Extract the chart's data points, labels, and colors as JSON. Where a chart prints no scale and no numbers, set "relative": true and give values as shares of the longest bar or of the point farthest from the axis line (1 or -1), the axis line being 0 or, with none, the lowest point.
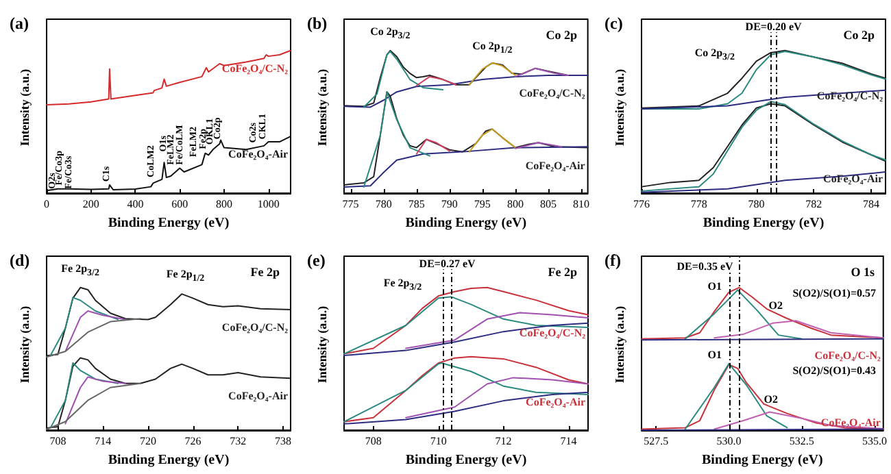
{
  "chart_data": [
    {
      "type": "line",
      "title": "(a)",
      "xlabel": "Binding Energy (eV)",
      "ylabel": "Intensity (a.u.)",
      "relative": true,
      "xlim": [
        0,
        1100
      ],
      "xticks": [
        0,
        200,
        400,
        600,
        800,
        1000
      ],
      "series": [
        {
          "name": "CoFe₂O₄/C-N₂",
          "color": "#d42a2a",
          "x": [
            0,
            100,
            200,
            280,
            284,
            290,
            400,
            480,
            485,
            520,
            530,
            540,
            600,
            700,
            720,
            730,
            780,
            800,
            900,
            950,
            980,
            990,
            1000,
            1050,
            1100
          ],
          "values": [
            0.62,
            0.626,
            0.64,
            0.66,
            0.87,
            0.66,
            0.686,
            0.704,
            0.72,
            0.738,
            0.8,
            0.75,
            0.777,
            0.817,
            0.88,
            0.85,
            0.908,
            0.895,
            0.92,
            0.935,
            0.945,
            0.97,
            0.96,
            0.97,
            1.0
          ]
        },
        {
          "name": "CoFe₂O₄-Air",
          "color": "#111111",
          "x": [
            0,
            50,
            100,
            200,
            280,
            284,
            300,
            400,
            470,
            480,
            520,
            530,
            540,
            560,
            600,
            620,
            700,
            715,
            730,
            750,
            780,
            785,
            800,
            900,
            980,
            1000,
            1050,
            1100
          ],
          "values": [
            0.018,
            0.03,
            0.03,
            0.026,
            0.03,
            0.058,
            0.024,
            0.029,
            0.045,
            0.07,
            0.097,
            0.215,
            0.11,
            0.12,
            0.175,
            0.149,
            0.2,
            0.28,
            0.267,
            0.306,
            0.346,
            0.372,
            0.319,
            0.306,
            0.332,
            0.36,
            0.36,
            0.398
          ]
        }
      ],
      "annotations": [
        "O2s",
        "Fe/Co3p",
        "Fe/Co3s",
        "C1s",
        "CoLM2",
        "O1s",
        "FeLM2",
        "Fe/CoLM",
        "FeLM2",
        "Fe2p",
        "OKL1",
        "Co2p",
        "Co2s",
        "CKL1"
      ]
    },
    {
      "type": "line",
      "title": "(b)",
      "subtitle": "Co 2p",
      "xlabel": "Binding Energy (eV)",
      "ylabel": "Intensity (a.u.)",
      "relative": true,
      "xlim": [
        774,
        811
      ],
      "xticks": [
        775,
        780,
        785,
        790,
        795,
        800,
        805,
        810
      ],
      "series": [
        {
          "name": "CoFe₂O₄/C-N₂",
          "color": "#222222",
          "x": [
            774,
            777,
            778.5,
            779.5,
            780.5,
            781,
            782,
            783,
            784,
            785,
            786,
            787,
            789,
            791,
            793,
            794,
            795.5,
            796.5,
            798,
            799.5,
            801,
            803,
            805,
            808,
            811
          ],
          "values": [
            0.614,
            0.609,
            0.632,
            0.81,
            0.97,
            1.0,
            0.957,
            0.884,
            0.84,
            0.81,
            0.817,
            0.826,
            0.797,
            0.76,
            0.76,
            0.81,
            0.884,
            0.913,
            0.9,
            0.84,
            0.835,
            0.875,
            0.855,
            0.826,
            0.826
          ]
        },
        {
          "color": "#2c2c80",
          "x": [
            774,
            778,
            780,
            782,
            785,
            790,
            795,
            800,
            805,
            811
          ],
          "values": [
            0.609,
            0.603,
            0.652,
            0.71,
            0.748,
            0.76,
            0.797,
            0.817,
            0.826,
            0.826
          ]
        },
        {
          "color": "#2a8a80",
          "x": [
            777,
            779,
            780.5,
            781,
            782,
            784,
            786,
            789
          ],
          "values": [
            0.603,
            0.696,
            0.97,
            0.994,
            0.94,
            0.797,
            0.74,
            0.725
          ]
        },
        {
          "color": "#d04060",
          "x": [
            785,
            787,
            789,
            791
          ],
          "values": [
            0.754,
            0.817,
            0.797,
            0.76
          ]
        },
        {
          "color": "#c8a020",
          "x": [
            793,
            795,
            796.5,
            798,
            800
          ],
          "values": [
            0.76,
            0.87,
            0.913,
            0.893,
            0.826
          ]
        },
        {
          "color": "#a050b0",
          "x": [
            800,
            803,
            806,
            808
          ],
          "values": [
            0.817,
            0.875,
            0.841,
            0.826
          ]
        },
        {
          "name": "CoFe₂O₄-Air",
          "color": "#222222",
          "x": [
            774,
            777,
            778.5,
            779.5,
            780.5,
            781,
            782,
            783,
            784,
            785,
            786.5,
            788,
            790,
            792,
            794,
            795.5,
            796.5,
            798,
            800,
            802,
            803.5,
            806,
            811
          ],
          "values": [
            0.058,
            0.072,
            0.116,
            0.406,
            0.71,
            0.681,
            0.522,
            0.406,
            0.333,
            0.319,
            0.377,
            0.348,
            0.304,
            0.29,
            0.348,
            0.435,
            0.449,
            0.391,
            0.319,
            0.342,
            0.354,
            0.325,
            0.319
          ]
        },
        {
          "color": "#2c2c80",
          "x": [
            774,
            778,
            780,
            782,
            786,
            792,
            800,
            811
          ],
          "values": [
            0.043,
            0.052,
            0.145,
            0.232,
            0.275,
            0.29,
            0.319,
            0.325
          ]
        },
        {
          "color": "#2a8a80",
          "x": [
            777,
            779.5,
            780.5,
            782,
            784,
            787
          ],
          "values": [
            0.043,
            0.406,
            0.71,
            0.516,
            0.319,
            0.261
          ]
        },
        {
          "color": "#d04060",
          "x": [
            785,
            786.5,
            788,
            790
          ],
          "values": [
            0.275,
            0.377,
            0.354,
            0.296
          ]
        },
        {
          "color": "#c8a020",
          "x": [
            793,
            795,
            796.5,
            798,
            800
          ],
          "values": [
            0.29,
            0.406,
            0.449,
            0.391,
            0.319
          ]
        },
        {
          "color": "#a050b0",
          "x": [
            800,
            803.5,
            807
          ],
          "values": [
            0.313,
            0.354,
            0.325
          ]
        }
      ],
      "annotations": [
        "Co 2p$_{3/2}$",
        "Co 2p$_{1/2}$"
      ]
    },
    {
      "type": "line",
      "title": "(c)",
      "subtitle": "Co 2p",
      "xlabel": "Binding Energy (eV)",
      "ylabel": "Intensity (a.u.)",
      "relative": true,
      "xlim": [
        776,
        784.5
      ],
      "xticks": [
        776,
        778,
        780,
        782,
        784
      ],
      "series": [
        {
          "name": "CoFe₂O₄/C-N₂",
          "color": "#222222",
          "x": [
            776,
            778,
            779,
            779.5,
            780,
            780.5,
            781,
            782,
            783,
            784,
            784.5
          ],
          "values": [
            0.597,
            0.612,
            0.701,
            0.806,
            0.925,
            0.985,
            1.0,
            0.955,
            0.91,
            0.836,
            0.806
          ]
        },
        {
          "color": "#2a8a80",
          "x": [
            776,
            778,
            779,
            779.5,
            780,
            780.5,
            781,
            782,
            783,
            784,
            784.5
          ],
          "values": [
            0.591,
            0.591,
            0.627,
            0.701,
            0.866,
            0.97,
            0.994,
            0.955,
            0.9,
            0.83,
            0.8
          ]
        },
        {
          "color": "#2c2c80",
          "x": [
            776,
            779,
            781,
            783,
            784.5
          ],
          "values": [
            0.591,
            0.612,
            0.672,
            0.701,
            0.722
          ]
        },
        {
          "name": "CoFe₂O₄-Air",
          "color": "#222222",
          "x": [
            776,
            777,
            778,
            778.5,
            779,
            779.5,
            780,
            780.5,
            781,
            782,
            783,
            784,
            784.5
          ],
          "values": [
            0.045,
            0.075,
            0.09,
            0.179,
            0.328,
            0.478,
            0.597,
            0.627,
            0.612,
            0.478,
            0.358,
            0.269,
            0.224
          ]
        },
        {
          "color": "#2a8a80",
          "x": [
            776,
            778,
            778.5,
            779,
            779.5,
            780,
            780.5,
            781,
            782,
            783,
            784,
            784.5
          ],
          "values": [
            0.015,
            0.045,
            0.134,
            0.299,
            0.463,
            0.582,
            0.642,
            0.621,
            0.484,
            0.364,
            0.269,
            0.233
          ]
        },
        {
          "color": "#2c2c80",
          "x": [
            776,
            779,
            781,
            783,
            784.5
          ],
          "values": [
            0.006,
            0.03,
            0.09,
            0.119,
            0.149
          ]
        }
      ],
      "ref_lines": [
        {
          "axis": "x",
          "value": 780.5,
          "line_style": "dashed"
        },
        {
          "axis": "x",
          "value": 780.7,
          "line_style": "dashed"
        }
      ],
      "annotations": [
        "DE=0.20 eV",
        "Co 2p$_{3/2}$"
      ]
    },
    {
      "type": "line",
      "title": "(d)",
      "subtitle": "Fe 2p",
      "xlabel": "Binding Energy (eV)",
      "ylabel": "Intensity (a.u.)",
      "relative": true,
      "xlim": [
        706.5,
        739
      ],
      "xticks": [
        708,
        714,
        720,
        726,
        732,
        738
      ],
      "series": [
        {
          "name": "CoFe₂O₄/C-N₂",
          "color": "#222222",
          "x": [
            706.5,
            708,
            709,
            710,
            711,
            712,
            713,
            715,
            717,
            720,
            721,
            723,
            724.5,
            726,
            728,
            730,
            732,
            735,
            739
          ],
          "values": [
            0.522,
            0.531,
            0.716,
            0.925,
            1.0,
            0.985,
            0.91,
            0.82,
            0.782,
            0.776,
            0.791,
            0.88,
            0.955,
            0.925,
            0.88,
            0.866,
            0.872,
            0.851,
            0.845
          ]
        },
        {
          "color": "#2a8a80",
          "x": [
            707,
            709,
            710,
            711,
            713,
            716
          ],
          "values": [
            0.522,
            0.716,
            0.93,
            0.91,
            0.836,
            0.776
          ]
        },
        {
          "color": "#a050b0",
          "x": [
            709,
            711,
            712,
            714,
            717
          ],
          "values": [
            0.552,
            0.791,
            0.836,
            0.806,
            0.776
          ]
        },
        {
          "color": "#666666",
          "x": [
            706.5,
            709,
            712,
            715,
            719
          ],
          "values": [
            0.513,
            0.552,
            0.687,
            0.761,
            0.782
          ]
        },
        {
          "name": "CoFe₂O₄-Air",
          "color": "#222222",
          "x": [
            706.5,
            708,
            709,
            710,
            711,
            712,
            713,
            715,
            717,
            719,
            721,
            723,
            724.5,
            726,
            728,
            730,
            732,
            735,
            739
          ],
          "values": [
            0.015,
            0.024,
            0.209,
            0.448,
            0.507,
            0.493,
            0.433,
            0.358,
            0.328,
            0.328,
            0.358,
            0.433,
            0.463,
            0.433,
            0.388,
            0.388,
            0.403,
            0.373,
            0.364
          ]
        },
        {
          "color": "#2a8a80",
          "x": [
            707,
            709,
            710,
            711,
            713,
            716
          ],
          "values": [
            0.015,
            0.209,
            0.472,
            0.418,
            0.358,
            0.328
          ]
        },
        {
          "color": "#a050b0",
          "x": [
            709,
            711,
            712,
            714,
            717
          ],
          "values": [
            0.045,
            0.299,
            0.373,
            0.343,
            0.328
          ]
        },
        {
          "color": "#666666",
          "x": [
            706.5,
            709,
            712,
            715,
            719
          ],
          "values": [
            0.006,
            0.06,
            0.209,
            0.299,
            0.328
          ]
        }
      ],
      "annotations": [
        "Fe 2p$_{3/2}$",
        "Fe 2p$_{1/2}$"
      ]
    },
    {
      "type": "line",
      "title": "(e)",
      "subtitle": "Fe 2p",
      "xlabel": "Binding Energy (eV)",
      "ylabel": "Intensity (a.u.)",
      "relative": true,
      "xlim": [
        707.1,
        714.6
      ],
      "xticks": [
        708,
        710,
        712,
        714
      ],
      "series": [
        {
          "name": "CoFe₂O₄/C-N₂",
          "color": "#c8303a",
          "x": [
            707.1,
            708,
            709,
            709.5,
            710,
            710.5,
            711,
            711.5,
            712,
            713,
            714,
            714.6
          ],
          "values": [
            0.535,
            0.574,
            0.735,
            0.853,
            0.941,
            0.971,
            0.994,
            1.0,
            0.971,
            0.912,
            0.838,
            0.809
          ]
        },
        {
          "color": "#2a8a80",
          "x": [
            707.1,
            709,
            710,
            710.4,
            711,
            712,
            713,
            714.6
          ],
          "values": [
            0.535,
            0.735,
            0.926,
            0.935,
            0.882,
            0.779,
            0.735,
            0.721
          ]
        },
        {
          "color": "#a050b0",
          "x": [
            709,
            710.5,
            711.5,
            712.5,
            713.5,
            714.6
          ],
          "values": [
            0.574,
            0.632,
            0.779,
            0.824,
            0.809,
            0.788
          ]
        },
        {
          "color": "#2c2c80",
          "x": [
            707.1,
            709,
            710.5,
            712,
            713.5,
            714.6
          ],
          "values": [
            0.524,
            0.559,
            0.618,
            0.691,
            0.735,
            0.75
          ]
        },
        {
          "name": "CoFe₂O₄-Air",
          "color": "#c8303a",
          "x": [
            707.1,
            708,
            709,
            709.5,
            710,
            710.5,
            711,
            712,
            713,
            714,
            714.6
          ],
          "values": [
            0.059,
            0.088,
            0.279,
            0.382,
            0.471,
            0.506,
            0.515,
            0.5,
            0.441,
            0.353,
            0.324
          ]
        },
        {
          "color": "#2a8a80",
          "x": [
            707.1,
            709,
            710,
            710.1,
            711,
            712,
            713,
            714.6
          ],
          "values": [
            0.059,
            0.279,
            0.465,
            0.471,
            0.412,
            0.309,
            0.265,
            0.25
          ]
        },
        {
          "color": "#a050b0",
          "x": [
            709,
            710.5,
            711.5,
            712.3,
            713.5,
            714.6
          ],
          "values": [
            0.088,
            0.162,
            0.324,
            0.368,
            0.353,
            0.324
          ]
        },
        {
          "color": "#2c2c80",
          "x": [
            707.1,
            709,
            710.5,
            712,
            713.5,
            714.6
          ],
          "values": [
            0.044,
            0.074,
            0.132,
            0.206,
            0.25,
            0.265
          ]
        }
      ],
      "ref_lines": [
        {
          "axis": "x",
          "value": 710.13,
          "line_style": "dashed"
        },
        {
          "axis": "x",
          "value": 710.4,
          "line_style": "dashed"
        }
      ],
      "annotations": [
        "DE=0.27 eV",
        "Fe 2p$_{3/2}$"
      ]
    },
    {
      "type": "line",
      "title": "(f)",
      "subtitle": "O 1s",
      "xlabel": "Binding Energy (eV)",
      "ylabel": "Intensity (a.u.)",
      "relative": true,
      "xlim": [
        527,
        535.3
      ],
      "xticks": [
        {
          "value": 527.5,
          "label": "527.5"
        },
        {
          "value": 530,
          "label": "530.0"
        },
        {
          "value": 532.5,
          "label": "532.5"
        },
        {
          "value": 535,
          "label": "535.0"
        }
      ],
      "series": [
        {
          "name": "CoFe₂O₄/C-N₂",
          "color": "#c8303a",
          "x": [
            527,
            528.5,
            529,
            529.5,
            530,
            530.35,
            530.8,
            531.3,
            532,
            532.8,
            533.5,
            535.3
          ],
          "values": [
            0.64,
            0.647,
            0.683,
            0.833,
            0.967,
            1.0,
            0.933,
            0.85,
            0.783,
            0.717,
            0.667,
            0.647
          ]
        },
        {
          "color": "#2a8a80",
          "x": [
            528.5,
            529.5,
            530.3,
            531,
            531.7,
            532.5
          ],
          "values": [
            0.64,
            0.817,
            0.983,
            0.833,
            0.667,
            0.64
          ]
        },
        {
          "color": "#c060b0",
          "x": [
            529.5,
            530.5,
            531.5,
            532.3,
            533.5,
            535.3
          ],
          "values": [
            0.647,
            0.673,
            0.75,
            0.767,
            0.683,
            0.647
          ]
        },
        {
          "color": "#2c2c80",
          "x": [
            527,
            535.3
          ],
          "values": [
            0.633,
            0.64
          ]
        },
        {
          "name": "CoFe₂O₄-Air",
          "color": "#c8303a",
          "x": [
            527,
            528.5,
            529,
            529.5,
            530,
            530.3,
            530.6,
            531.2,
            532,
            533,
            534,
            535.3
          ],
          "values": [
            0.007,
            0.017,
            0.067,
            0.283,
            0.46,
            0.433,
            0.333,
            0.183,
            0.117,
            0.05,
            0.017,
            0.007
          ]
        },
        {
          "color": "#2a8a80",
          "x": [
            528.5,
            529.5,
            530,
            530.6,
            531.3,
            532
          ],
          "values": [
            0.007,
            0.3,
            0.467,
            0.317,
            0.1,
            0.017
          ]
        },
        {
          "color": "#c060b0",
          "x": [
            529.5,
            530.5,
            531.4,
            532.5,
            533.5,
            535.3
          ],
          "values": [
            0.007,
            0.067,
            0.127,
            0.083,
            0.033,
            0.01
          ]
        },
        {
          "color": "#2c2c80",
          "x": [
            527,
            535.3
          ],
          "values": [
            0,
            0.007
          ]
        }
      ],
      "ref_lines": [
        {
          "axis": "x",
          "value": 530,
          "line_style": "dashed"
        },
        {
          "axis": "x",
          "value": 530.35,
          "line_style": "dashed"
        }
      ],
      "annotations": [
        "DE=0.35 eV",
        "O1",
        "O2",
        "S(O2)/S(O1)=0.57",
        "O1",
        "S(O2)/S(O1)=0.43",
        "O2"
      ]
    }
  ]
}
